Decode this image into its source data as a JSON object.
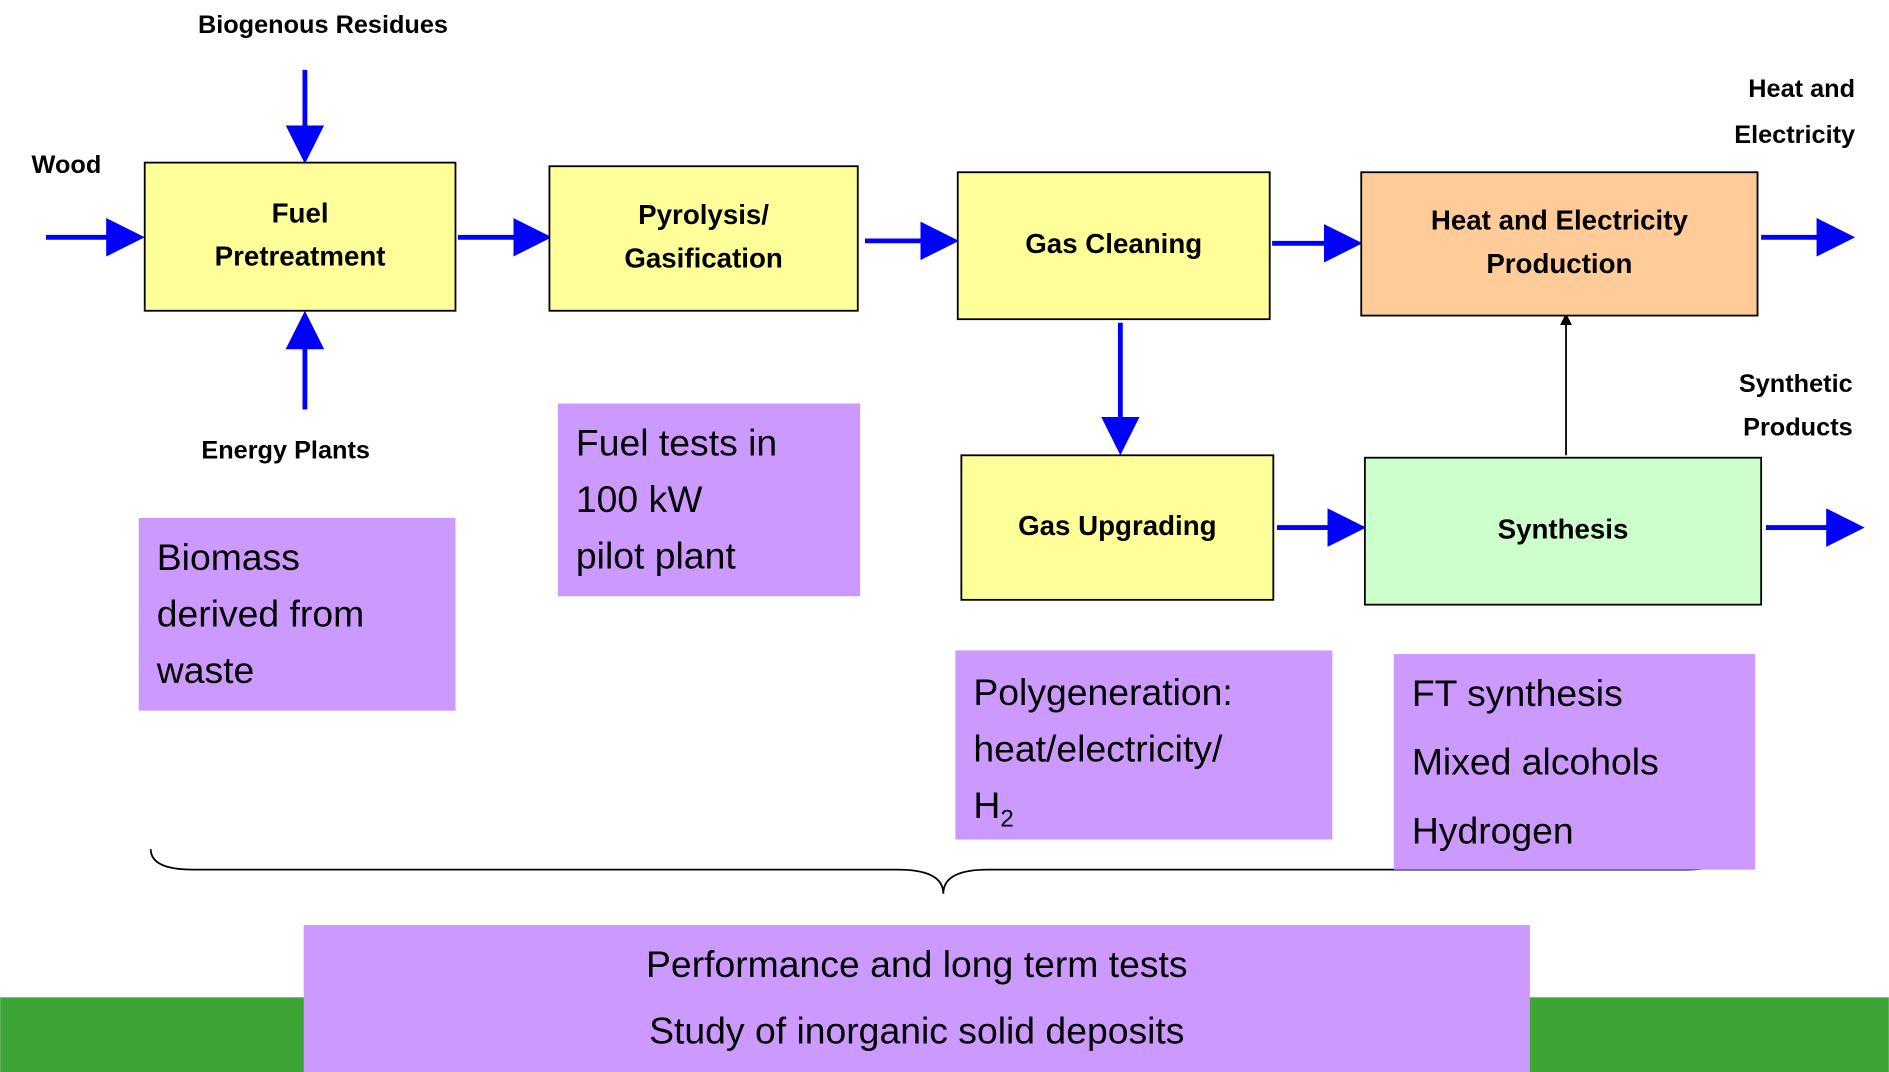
{
  "inputs": [
    {
      "lines": [
        "Biogenous Residues"
      ]
    },
    {
      "lines": [
        "Wood"
      ]
    },
    {
      "lines": [
        "Energy Plants"
      ]
    }
  ],
  "outputs": [
    {
      "lines": [
        "Heat and",
        "Electricity"
      ]
    },
    {
      "lines": [
        "Synthetic",
        "Products"
      ]
    }
  ],
  "nodes": [
    {
      "lines": [
        "Fuel",
        "Pretreatment"
      ]
    },
    {
      "lines": [
        "Pyrolysis/",
        "Gasification"
      ]
    },
    {
      "lines": [
        "Gas Cleaning"
      ]
    },
    {
      "lines": [
        "Heat and Electricity",
        "Production"
      ]
    },
    {
      "lines": [
        "Gas Upgrading"
      ]
    },
    {
      "lines": [
        "Synthesis"
      ]
    }
  ],
  "notes": [
    {
      "lines": [
        "Biomass",
        "derived from",
        "waste"
      ]
    },
    {
      "lines": [
        "Fuel tests in",
        "100 kW",
        "pilot plant"
      ]
    },
    {
      "lines": [
        "Polygeneration:",
        "heat/electricity/"
      ],
      "formula": {
        "base": "H",
        "sub": "2"
      }
    },
    {
      "lines": [
        "FT synthesis",
        "Mixed alcohols",
        "Hydrogen"
      ]
    },
    {
      "lines": [
        "Performance and long term tests",
        "Study of inorganic solid deposits"
      ]
    }
  ]
}
